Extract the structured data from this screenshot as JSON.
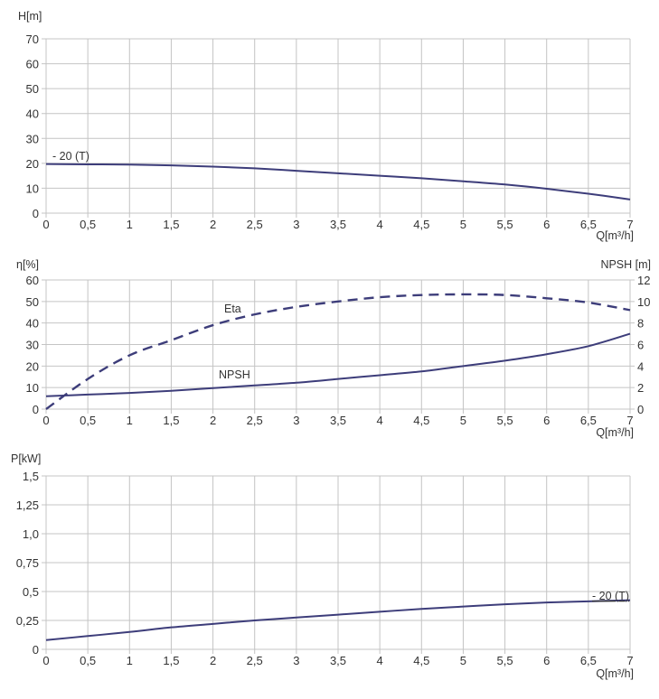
{
  "curve_color": "#3d3d7a",
  "grid_color": "#c4c4c4",
  "chart_data": [
    {
      "type": "line",
      "ylabel": "H[m]",
      "xlabel": "Q[m³/h]",
      "xlim": [
        0,
        7
      ],
      "ylim": [
        0,
        70
      ],
      "grid": true,
      "x_ticks": [
        "0",
        "0,5",
        "1",
        "1,5",
        "2",
        "2,5",
        "3",
        "3,5",
        "4",
        "4,5",
        "5",
        "5,5",
        "6",
        "6,5",
        "7"
      ],
      "y_ticks": [
        "0",
        "10",
        "20",
        "30",
        "40",
        "50",
        "60",
        "70"
      ],
      "series": [
        {
          "name": "- 20 (T)",
          "style": "solid",
          "x": [
            0,
            0.5,
            1,
            1.5,
            2,
            2.5,
            3,
            3.5,
            4,
            4.5,
            5,
            5.5,
            6,
            6.5,
            7
          ],
          "y": [
            19.7,
            19.6,
            19.5,
            19.2,
            18.7,
            18.0,
            17.0,
            16.0,
            15.0,
            14.0,
            12.8,
            11.5,
            9.8,
            7.8,
            5.5
          ]
        }
      ]
    },
    {
      "type": "line",
      "ylabel": "η[%]",
      "y2label": "NPSH [m]",
      "xlabel": "Q[m³/h]",
      "xlim": [
        0,
        7
      ],
      "ylim": [
        0,
        60
      ],
      "y2lim": [
        0,
        12
      ],
      "grid": true,
      "x_ticks": [
        "0",
        "0,5",
        "1",
        "1,5",
        "2",
        "2,5",
        "3",
        "3,5",
        "4",
        "4,5",
        "5",
        "5,5",
        "6",
        "6,5",
        "7"
      ],
      "y_ticks": [
        "0",
        "10",
        "20",
        "30",
        "40",
        "50",
        "60"
      ],
      "y2_ticks": [
        "0",
        "2",
        "4",
        "6",
        "8",
        "10",
        "12"
      ],
      "series": [
        {
          "name": "Eta",
          "style": "dashed",
          "axis": "left",
          "x": [
            0,
            0.5,
            1,
            1.5,
            2,
            2.5,
            3,
            3.5,
            4,
            4.5,
            5,
            5.5,
            6,
            6.5,
            7
          ],
          "y": [
            0,
            14,
            25,
            32,
            39,
            44,
            47.5,
            50,
            52,
            53,
            53.3,
            53,
            51.5,
            49.5,
            46
          ]
        },
        {
          "name": "NPSH",
          "style": "solid",
          "axis": "right",
          "x": [
            0,
            0.5,
            1,
            1.5,
            2,
            2.5,
            3,
            3.5,
            4,
            4.5,
            5,
            5.5,
            6,
            6.5,
            7
          ],
          "y": [
            1.2,
            1.35,
            1.5,
            1.7,
            1.95,
            2.2,
            2.45,
            2.8,
            3.15,
            3.5,
            4.0,
            4.5,
            5.1,
            5.85,
            7.0
          ]
        }
      ]
    },
    {
      "type": "line",
      "ylabel": "P[kW]",
      "xlabel": "Q[m³/h]",
      "xlim": [
        0,
        7
      ],
      "ylim": [
        0,
        1.5
      ],
      "grid": true,
      "x_ticks": [
        "0",
        "0,5",
        "1",
        "1,5",
        "2",
        "2,5",
        "3",
        "3,5",
        "4",
        "4,5",
        "5",
        "5,5",
        "6",
        "6,5",
        "7"
      ],
      "y_ticks": [
        "0",
        "0,25",
        "0,5",
        "0,75",
        "1,0",
        "1,25",
        "1,5"
      ],
      "series": [
        {
          "name": "- 20 (T)",
          "style": "solid",
          "x": [
            0,
            0.5,
            1,
            1.5,
            2,
            2.5,
            3,
            3.5,
            4,
            4.5,
            5,
            5.5,
            6,
            6.5,
            7
          ],
          "y": [
            0.08,
            0.115,
            0.15,
            0.19,
            0.22,
            0.25,
            0.275,
            0.3,
            0.325,
            0.35,
            0.37,
            0.39,
            0.405,
            0.415,
            0.425
          ]
        }
      ]
    }
  ]
}
